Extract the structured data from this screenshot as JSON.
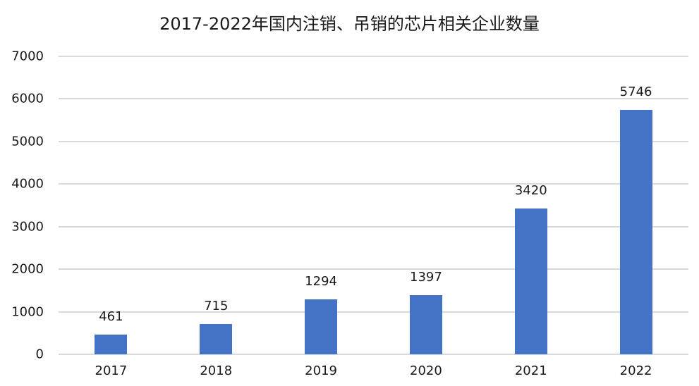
{
  "chart_data": {
    "type": "bar",
    "title": "2017-2022年国内注销、吊销的芯片相关企业数量",
    "categories": [
      "2017",
      "2018",
      "2019",
      "2020",
      "2021",
      "2022"
    ],
    "values": [
      461,
      715,
      1294,
      1397,
      3420,
      5746
    ],
    "data_labels": [
      "461",
      "715",
      "1294",
      "1397",
      "3420",
      "5746"
    ],
    "xlabel": "",
    "ylabel": "",
    "ylim": [
      0,
      7000
    ],
    "yticks": [
      "0",
      "1000",
      "2000",
      "3000",
      "4000",
      "5000",
      "6000",
      "7000"
    ],
    "grid": true,
    "legend": "none",
    "bar_color": "#4472c4"
  }
}
